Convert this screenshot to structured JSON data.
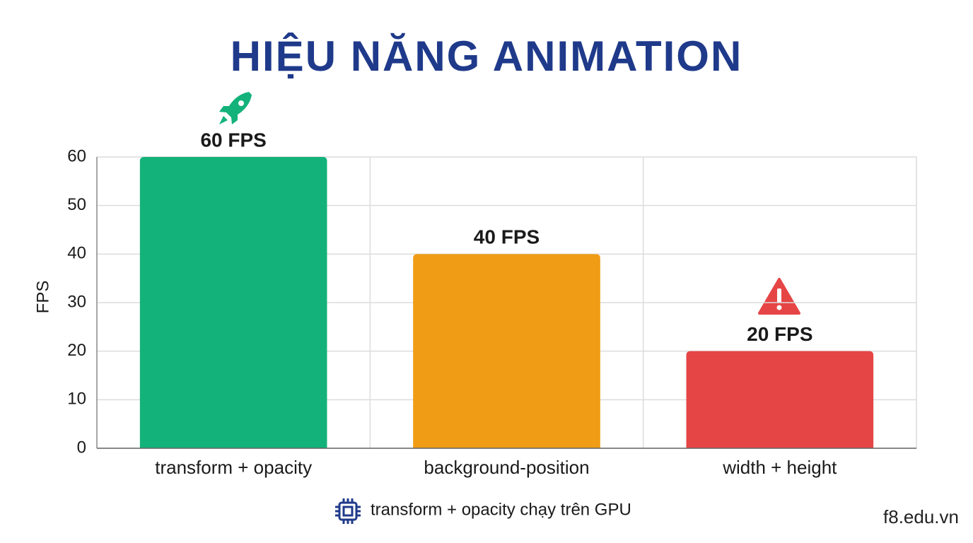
{
  "chart_data": {
    "type": "bar",
    "title": "HIỆU NĂNG ANIMATION",
    "y_label": "FPS",
    "categories": [
      "transform + opacity",
      "background-position",
      "width + height"
    ],
    "values": [
      60,
      40,
      20
    ],
    "value_labels": [
      "60 FPS",
      "40 FPS",
      "20 FPS"
    ],
    "colors": [
      "#13b27b",
      "#f09c15",
      "#e64545"
    ],
    "ylim": [
      0,
      60
    ],
    "yticks": [
      0,
      10,
      20,
      30,
      40,
      50,
      60
    ],
    "grid": true,
    "footnote": "transform + opacity chạy trên GPU",
    "watermark": "f8.edu.vn"
  }
}
